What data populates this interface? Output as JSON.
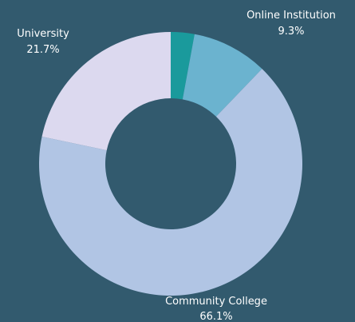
{
  "chart_data": {
    "type": "pie",
    "donut": true,
    "slices": [
      {
        "label": "",
        "value": 2.9,
        "color": "#1a9a9c"
      },
      {
        "label": "Online Institution",
        "value": 9.3,
        "display": "9.3%",
        "color": "#6bb3cf"
      },
      {
        "label": "Community College",
        "value": 66.1,
        "display": "66.1%",
        "color": "#b1c5e4"
      },
      {
        "label": "University",
        "value": 21.7,
        "display": "21.7%",
        "color": "#dcd9ef"
      }
    ],
    "legend": "none"
  },
  "colors": {
    "background": "#325a6e"
  }
}
